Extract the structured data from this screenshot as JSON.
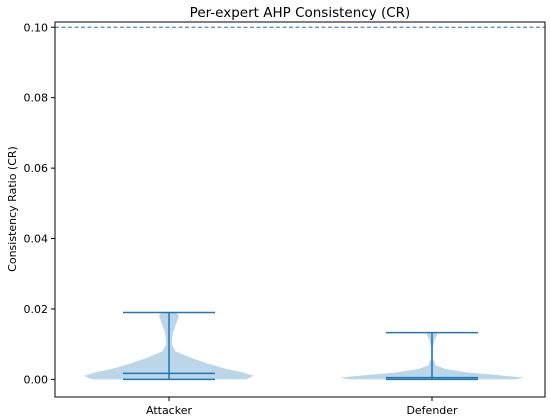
{
  "chart_data": {
    "type": "violin",
    "title": "Per-expert AHP Consistency (CR)",
    "xlabel": "",
    "ylabel": "Consistency Ratio (CR)",
    "ylim": [
      -0.005,
      0.1015
    ],
    "yticks": [
      0.0,
      0.02,
      0.04,
      0.06,
      0.08,
      0.1
    ],
    "ytick_labels": [
      "0.00",
      "0.02",
      "0.04",
      "0.06",
      "0.08",
      "0.10"
    ],
    "categories": [
      "Attacker",
      "Defender"
    ],
    "threshold": {
      "value": 0.1,
      "style": "dashed"
    },
    "violins": [
      {
        "name": "Attacker",
        "min": 0.0,
        "max": 0.019,
        "median": 0.0017,
        "profile": [
          [
            0.0,
            0.84
          ],
          [
            0.001,
            0.92
          ],
          [
            0.002,
            0.8
          ],
          [
            0.003,
            0.62
          ],
          [
            0.0045,
            0.42
          ],
          [
            0.006,
            0.25
          ],
          [
            0.008,
            0.07
          ],
          [
            0.01,
            0.03
          ],
          [
            0.013,
            0.04
          ],
          [
            0.016,
            0.08
          ],
          [
            0.018,
            0.11
          ],
          [
            0.019,
            0.08
          ]
        ]
      },
      {
        "name": "Defender",
        "min": 0.0,
        "max": 0.0133,
        "median": 0.0005,
        "profile": [
          [
            0.0,
            0.9
          ],
          [
            0.0005,
            1.0
          ],
          [
            0.0012,
            0.72
          ],
          [
            0.002,
            0.38
          ],
          [
            0.003,
            0.14
          ],
          [
            0.004,
            0.04
          ],
          [
            0.006,
            0.01
          ],
          [
            0.009,
            0.01
          ],
          [
            0.0115,
            0.03
          ],
          [
            0.0125,
            0.06
          ],
          [
            0.0133,
            0.04
          ]
        ]
      }
    ],
    "colors": {
      "body": "#1f77b4",
      "body_alpha": 0.3,
      "lines": "#1f77b4",
      "threshold": "#1f77b4"
    }
  }
}
